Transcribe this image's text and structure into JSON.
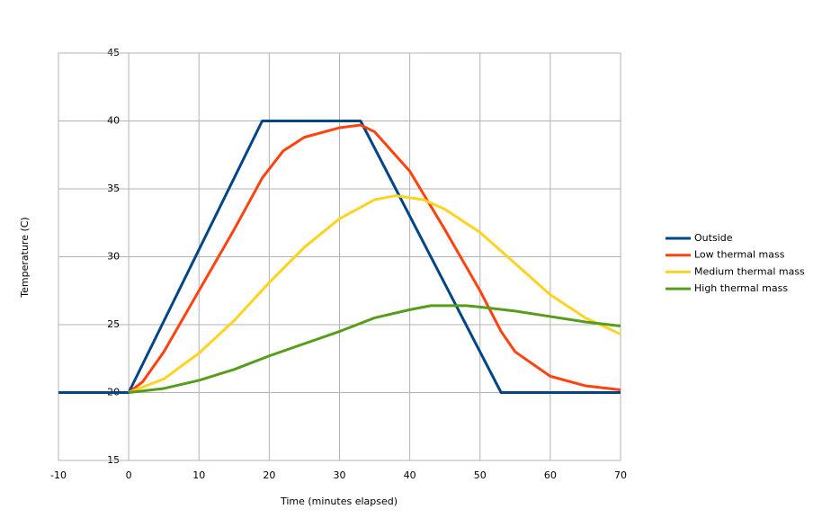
{
  "chart_data": {
    "type": "line",
    "x_label": "Time (minutes elapsed)",
    "y_label": "Temperature (C)",
    "xlim": [
      -10,
      70
    ],
    "xticks": [
      -10,
      0,
      10,
      20,
      30,
      40,
      50,
      60,
      70
    ],
    "ylim": [
      15,
      45
    ],
    "yticks": [
      15,
      20,
      25,
      30,
      35,
      40,
      45
    ],
    "grid": true,
    "legend": "right",
    "series": [
      {
        "name": "Outside",
        "color": "#004586",
        "x": [
          -10,
          0,
          19,
          33,
          53,
          70
        ],
        "values": [
          20,
          20,
          40,
          40,
          20,
          20
        ]
      },
      {
        "name": "Low thermal mass",
        "color": "#ff420e",
        "x": [
          0,
          2,
          5,
          10,
          15,
          19,
          22,
          25,
          30,
          33,
          35,
          40,
          45,
          50,
          53,
          55,
          60,
          65,
          70
        ],
        "values": [
          20,
          20.8,
          23,
          27.5,
          32,
          35.8,
          37.8,
          38.8,
          39.5,
          39.7,
          39.2,
          36.3,
          32,
          27.5,
          24.5,
          23,
          21.2,
          20.5,
          20.2
        ]
      },
      {
        "name": "Medium thermal mass",
        "color": "#ffd320",
        "x": [
          0,
          5,
          10,
          15,
          20,
          25,
          30,
          35,
          38,
          42,
          45,
          50,
          55,
          60,
          65,
          70
        ],
        "values": [
          20,
          21,
          22.9,
          25.3,
          28.1,
          30.7,
          32.8,
          34.2,
          34.5,
          34.2,
          33.5,
          31.8,
          29.5,
          27.2,
          25.5,
          24.3
        ]
      },
      {
        "name": "High thermal mass",
        "color": "#579d1c",
        "x": [
          0,
          5,
          10,
          15,
          20,
          25,
          30,
          35,
          40,
          43,
          48,
          50,
          55,
          60,
          65,
          70
        ],
        "values": [
          20,
          20.3,
          20.9,
          21.7,
          22.7,
          23.6,
          24.5,
          25.5,
          26.1,
          26.4,
          26.4,
          26.3,
          26,
          25.6,
          25.2,
          24.9
        ]
      }
    ]
  }
}
